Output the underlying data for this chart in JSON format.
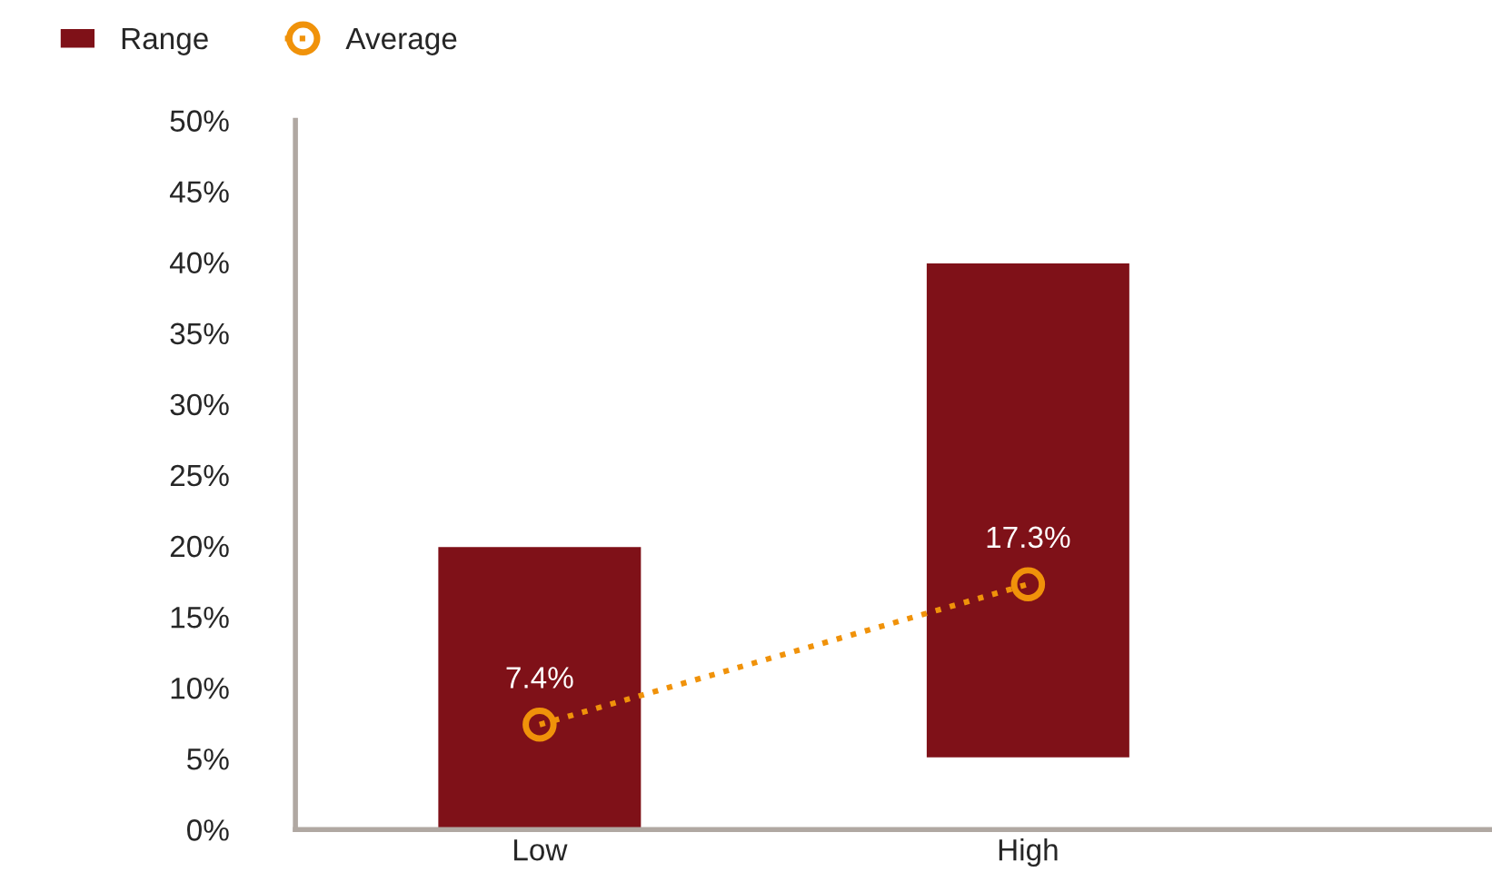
{
  "chart_data": {
    "type": "bar",
    "categories": [
      "Low",
      "High"
    ],
    "series": [
      {
        "name": "Range",
        "color": "#7f1118",
        "base": [
          0,
          5
        ],
        "values": [
          20,
          35
        ]
      },
      {
        "name": "Average",
        "type": "line",
        "color": "#f0920a",
        "marker": "circle",
        "line_style": "dotted",
        "values": [
          7.4,
          17.3
        ],
        "value_labels": [
          "7.4%",
          "17.3%"
        ]
      }
    ],
    "ylim": [
      0,
      50
    ],
    "yticks": [
      {
        "value": 0,
        "label": "0%"
      },
      {
        "value": 5,
        "label": "5%"
      },
      {
        "value": 10,
        "label": "10%"
      },
      {
        "value": 15,
        "label": "15%"
      },
      {
        "value": 20,
        "label": "20%"
      },
      {
        "value": 25,
        "label": "25%"
      },
      {
        "value": 30,
        "label": "30%"
      },
      {
        "value": 35,
        "label": "35%"
      },
      {
        "value": 40,
        "label": "40%"
      },
      {
        "value": 45,
        "label": "45%"
      },
      {
        "value": 50,
        "label": "50%"
      }
    ],
    "grid": false,
    "legend": "top left"
  }
}
